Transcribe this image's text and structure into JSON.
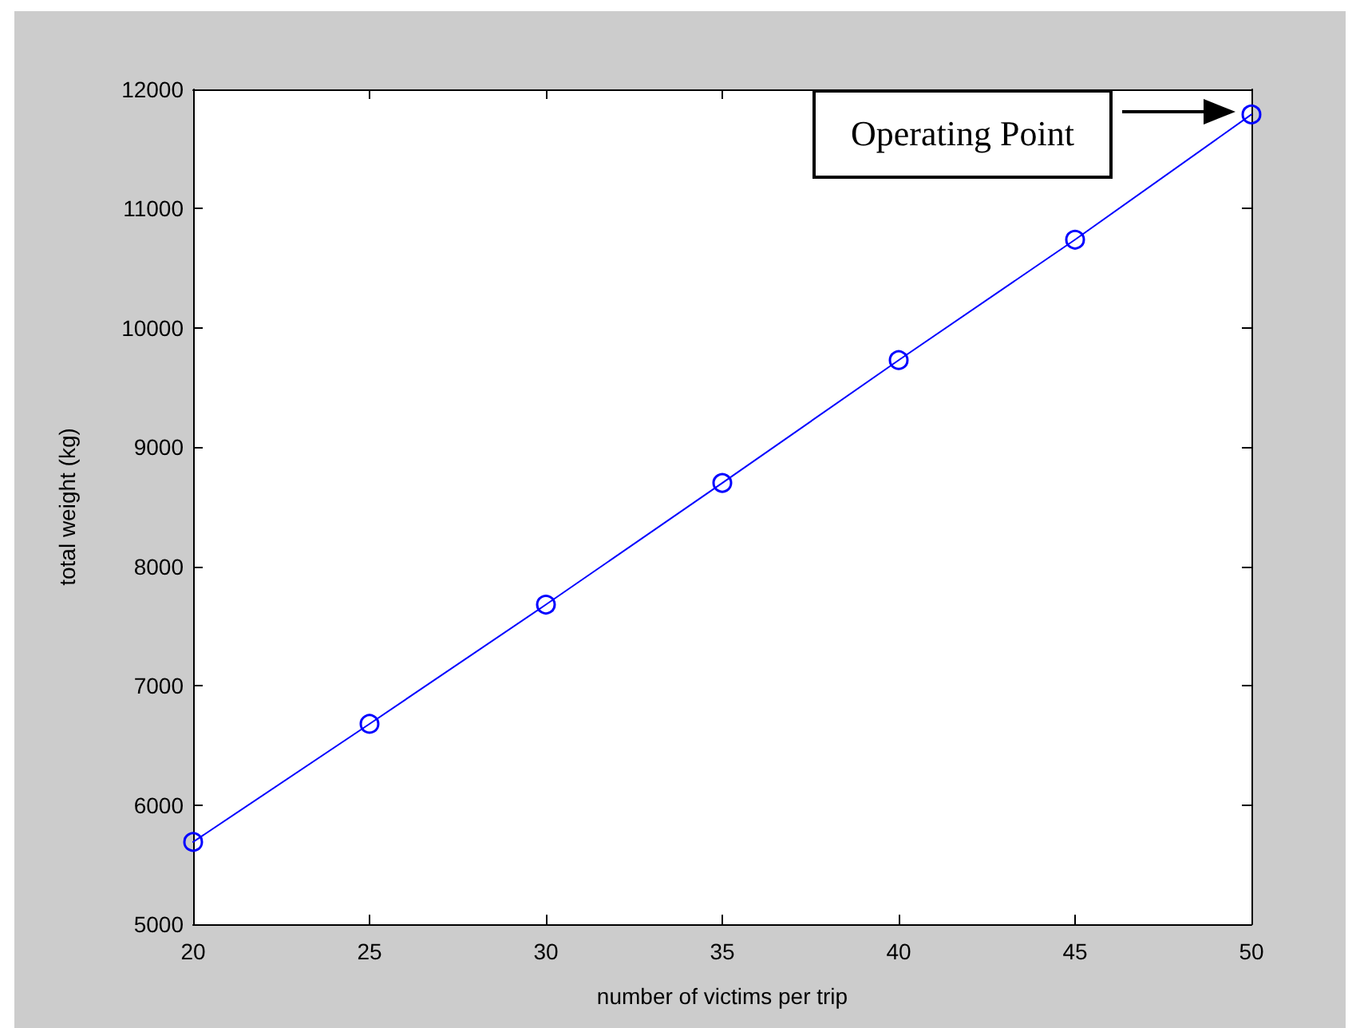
{
  "chart_data": {
    "type": "line",
    "xlabel": "number of victims per trip",
    "ylabel": "total weight (kg)",
    "x": [
      20,
      25,
      30,
      35,
      40,
      45,
      50
    ],
    "series": [
      {
        "color": "#0000ff",
        "values": [
          5690,
          6680,
          7680,
          8700,
          9730,
          10740,
          11790
        ]
      }
    ],
    "xlim": [
      20,
      50
    ],
    "xticks": [
      20,
      25,
      30,
      35,
      40,
      45,
      50
    ],
    "ylim": [
      5000,
      12000
    ],
    "yticks": [
      5000,
      6000,
      7000,
      8000,
      9000,
      10000,
      11000,
      12000
    ],
    "grid": false,
    "marker": "circle",
    "line_style": "solid",
    "annotations": [
      "Operating Point"
    ]
  }
}
